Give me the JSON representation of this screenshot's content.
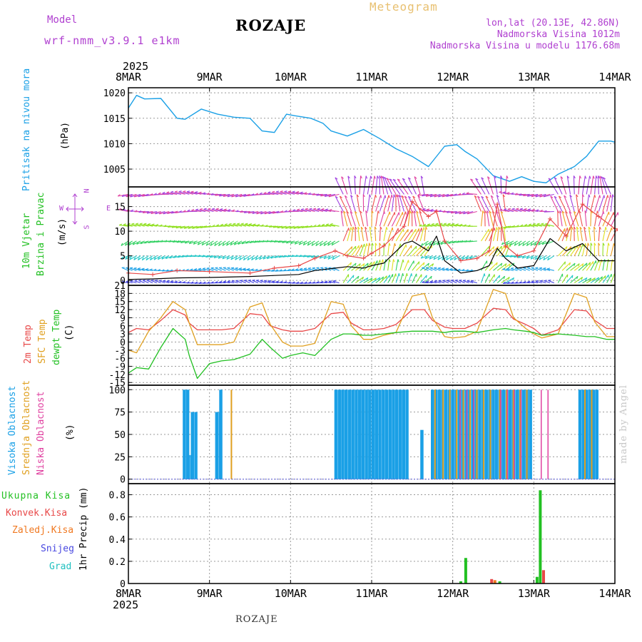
{
  "header": {
    "model_label": "Model",
    "model_name": "wrf-nmm_v3.9.1 e1km",
    "station": "ROZAJE",
    "meteogram_label": "Meteogram",
    "location": "lon,lat (20.13E, 42.86N)",
    "elevation": "Nadmorska Visina 1012m",
    "model_elevation": "Nadmorska Visina u modelu 1176.68m",
    "credit": "made by Angel"
  },
  "time_axis": {
    "year": "2025",
    "ticks": [
      "8MAR",
      "9MAR",
      "10MAR",
      "11MAR",
      "12MAR",
      "13MAR",
      "14MAR"
    ]
  },
  "colors": {
    "pressure": "#1aa0e6",
    "temp2m": "#e84848",
    "sfc": "#e0a020",
    "dewpt": "#22c022",
    "high_cloud": "#1aa0e6",
    "mid_cloud": "#e0a020",
    "low_cloud": "#e040a0",
    "total_precip": "#22c022",
    "conv_precip": "#e84848",
    "frz_precip": "#f07820",
    "snow": "#4848e0",
    "hail": "#20c0c0",
    "gust": "#e84848",
    "wind_mean": "#000000"
  },
  "panels": {
    "pressure": {
      "title": "Pritisak na nivou mora",
      "unit": "(hPa)",
      "ticks": [
        "1005",
        "1010",
        "1015",
        "1020"
      ]
    },
    "wind": {
      "title": "10m Vjetar",
      "subtitle": "Brzina i Pravac",
      "unit": "(m/s)",
      "ticks": [
        "0",
        "5",
        "10",
        "15"
      ],
      "compass": [
        "N",
        "W",
        "E",
        "S"
      ]
    },
    "temp": {
      "labels": [
        "2m Temp",
        "SFC Temp",
        "dewpt Temp"
      ],
      "unit": "(C)",
      "ticks": [
        "-15",
        "-12",
        "-9",
        "-6",
        "-3",
        "0",
        "3",
        "6",
        "9",
        "12",
        "15",
        "18",
        "21"
      ]
    },
    "cloud": {
      "labels": [
        "Visoka Oblacnost",
        "Srednja Oblacnost",
        "Niska Oblacnost"
      ],
      "unit": "(%)",
      "ticks": [
        "0",
        "25",
        "50",
        "75",
        "100"
      ]
    },
    "precip": {
      "labels": [
        "Ukupna Kisa",
        "Konvek.Kisa",
        "Zaledj.Kisa",
        "Snijeg",
        "Grad"
      ],
      "unit": "1hr Precip (mm)",
      "ticks": [
        "0",
        "0.2",
        "0.4",
        "0.6",
        "0.8"
      ]
    }
  },
  "chart_data": [
    {
      "type": "line",
      "title": "Pritisak na nivou mora",
      "ylabel": "(hPa)",
      "ylim": [
        1001.5,
        1021
      ],
      "x": [
        0,
        0.1,
        0.2,
        0.4,
        0.6,
        0.7,
        0.9,
        1.1,
        1.3,
        1.5,
        1.65,
        1.8,
        1.95,
        2.05,
        2.25,
        2.4,
        2.5,
        2.7,
        2.9,
        3.1,
        3.3,
        3.5,
        3.7,
        3.9,
        4.05,
        4.15,
        4.3,
        4.5,
        4.7,
        4.85,
        5.0,
        5.15,
        5.3,
        5.5,
        5.65,
        5.8,
        5.95,
        6.0
      ],
      "series": [
        {
          "name": "Pritisak na nivou mora",
          "values": [
            1017,
            1019.5,
            1018.8,
            1018.9,
            1015,
            1014.8,
            1016.8,
            1015.8,
            1015.2,
            1015,
            1012.5,
            1012.2,
            1015.8,
            1015.5,
            1015,
            1014,
            1012.5,
            1011.5,
            1012.8,
            1011,
            1009,
            1007.5,
            1005.5,
            1009.5,
            1009.8,
            1008.5,
            1007,
            1003.7,
            1002.6,
            1003.5,
            1002.6,
            1002.3,
            1004,
            1005.5,
            1007.5,
            1010.5,
            1010.5,
            1010.3
          ]
        }
      ],
      "grid": true
    },
    {
      "type": "line",
      "title": "10m Vjetar",
      "subtitle": "Brzina i Pravac",
      "ylabel": "(m/s)",
      "ylim": [
        -1,
        19
      ],
      "x": [
        0,
        0.3,
        0.6,
        1.0,
        1.5,
        1.8,
        2.1,
        2.3,
        2.55,
        2.7,
        2.9,
        3.0,
        3.15,
        3.4,
        3.5,
        3.7,
        3.8,
        3.9,
        4.1,
        4.3,
        4.45,
        4.55,
        4.65,
        4.8,
        5.0,
        5.2,
        5.4,
        5.6,
        5.8,
        6.0
      ],
      "series": [
        {
          "name": "",
          "values": [
            0.2,
            0.3,
            0.5,
            0.6,
            0.8,
            1.0,
            1.2,
            2.0,
            2.5,
            2.8,
            2.5,
            3.0,
            3.5,
            7.5,
            8.0,
            6.0,
            9.0,
            4.0,
            1.5,
            2.0,
            3.0,
            6.5,
            4.5,
            2.5,
            3.0,
            8.5,
            6.0,
            7.5,
            4.0,
            4.0
          ]
        },
        {
          "name": "",
          "values": [
            1.5,
            1.2,
            2.0,
            1.8,
            1.5,
            2.5,
            3.0,
            4.5,
            6.0,
            5.0,
            4.5,
            5.5,
            7.0,
            11.0,
            16.0,
            13.0,
            14.0,
            8.0,
            4.0,
            4.5,
            6.0,
            15.5,
            7.0,
            5.0,
            6.0,
            12.5,
            9.0,
            15.5,
            13.0,
            10.5
          ]
        }
      ],
      "grid": true
    },
    {
      "type": "line",
      "labels": [
        "2m Temp",
        "SFC Temp",
        "dewpt Temp"
      ],
      "ylabel": "(C)",
      "ylim": [
        -16,
        21
      ],
      "x": [
        0,
        0.1,
        0.25,
        0.4,
        0.55,
        0.7,
        0.75,
        0.85,
        1.0,
        1.15,
        1.3,
        1.5,
        1.65,
        1.75,
        1.9,
        2.0,
        2.15,
        2.3,
        2.5,
        2.65,
        2.75,
        2.9,
        3.0,
        3.15,
        3.3,
        3.5,
        3.65,
        3.75,
        3.9,
        4.0,
        4.15,
        4.3,
        4.5,
        4.65,
        4.75,
        4.9,
        5.0,
        5.1,
        5.3,
        5.5,
        5.65,
        5.75,
        5.9,
        6.0
      ],
      "series": [
        {
          "name": "2m Temp",
          "values": [
            3.5,
            5.0,
            4.5,
            8.0,
            12.0,
            10.0,
            7.0,
            4.5,
            4.5,
            4.5,
            5.0,
            10.5,
            10.0,
            6.0,
            4.5,
            4.0,
            4.0,
            5.0,
            10.5,
            11.0,
            7.0,
            4.5,
            4.5,
            5.0,
            6.5,
            12.0,
            12.0,
            8.0,
            5.5,
            5.0,
            5.0,
            7.0,
            12.5,
            12.0,
            8.5,
            6.5,
            5.0,
            2.5,
            4.5,
            12.0,
            11.5,
            8.0,
            5.0,
            5.0
          ]
        },
        {
          "name": "SFC Temp",
          "values": [
            -3.0,
            -4.0,
            4.0,
            9.0,
            15.0,
            12.0,
            7.0,
            -1.0,
            -1.0,
            -1.0,
            0.0,
            13.0,
            14.5,
            6.5,
            0.0,
            -1.5,
            -1.5,
            -0.5,
            15.0,
            14.0,
            6.0,
            1.0,
            1.0,
            2.5,
            3.5,
            17.0,
            18.0,
            9.0,
            2.0,
            1.5,
            2.0,
            4.0,
            19.5,
            18.0,
            9.0,
            5.0,
            3.0,
            1.5,
            3.0,
            18.0,
            16.5,
            7.5,
            2.0,
            2.0
          ]
        },
        {
          "name": "dewpt Temp",
          "values": [
            -11.5,
            -9.5,
            -10.0,
            -2.0,
            5.0,
            1.0,
            -5.0,
            -13.5,
            -8.0,
            -7.0,
            -6.5,
            -4.5,
            1.0,
            -2.0,
            -6.0,
            -5.0,
            -4.0,
            -5.0,
            1.0,
            3.0,
            3.0,
            2.5,
            2.5,
            3.0,
            3.5,
            4.0,
            4.0,
            4.0,
            3.5,
            4.0,
            4.0,
            3.5,
            4.5,
            5.0,
            4.5,
            4.0,
            3.5,
            2.5,
            3.0,
            2.5,
            2.0,
            2.0,
            1.0,
            1.0
          ]
        }
      ],
      "grid": true
    },
    {
      "type": "bar",
      "labels": [
        "Visoka Oblacnost",
        "Srednja Oblacnost",
        "Niska Oblacnost"
      ],
      "ylabel": "(%)",
      "ylim": [
        -5,
        105
      ],
      "groups": [
        {
          "name": "Visoka Oblacnost",
          "spans": [
            [
              0.67,
              0.72,
              100
            ],
            [
              0.72,
              0.77,
              27
            ],
            [
              0.77,
              0.83,
              75
            ],
            [
              1.07,
              1.12,
              75
            ],
            [
              1.12,
              1.16,
              100
            ],
            [
              2.54,
              3.45,
              100
            ],
            [
              3.6,
              3.63,
              55
            ],
            [
              3.73,
              4.95,
              100
            ],
            [
              5.55,
              5.8,
              100
            ]
          ]
        },
        {
          "name": "Srednja Oblacnost",
          "spans": [
            [
              1.24,
              1.3,
              100
            ],
            [
              3.75,
              3.78,
              100
            ],
            [
              3.85,
              4.45,
              100
            ],
            [
              4.55,
              4.95,
              100
            ],
            [
              5.6,
              5.75,
              100
            ]
          ]
        },
        {
          "name": "Niska Oblacnost",
          "spans": [
            [
              4.05,
              4.25,
              100
            ],
            [
              4.55,
              4.8,
              100
            ],
            [
              5.05,
              5.15,
              100
            ]
          ]
        }
      ],
      "grid": true
    },
    {
      "type": "bar",
      "labels": [
        "Ukupna Kisa",
        "Konvek.Kisa",
        "Zaledj.Kisa",
        "Snijeg",
        "Grad"
      ],
      "ylabel": "1hr Precip (mm)",
      "ylim": [
        0,
        0.9
      ],
      "bars": [
        {
          "name": "Ukupna Kisa",
          "x": 4.1,
          "value": 0.02
        },
        {
          "name": "Ukupna Kisa",
          "x": 4.16,
          "value": 0.23
        },
        {
          "name": "Konvek.Kisa",
          "x": 4.48,
          "value": 0.04
        },
        {
          "name": "Zaledj.Kisa",
          "x": 4.52,
          "value": 0.03
        },
        {
          "name": "Ukupna Kisa",
          "x": 4.58,
          "value": 0.02
        },
        {
          "name": "Ukupna Kisa",
          "x": 5.04,
          "value": 0.06
        },
        {
          "name": "Ukupna Kisa",
          "x": 5.08,
          "value": 0.84
        },
        {
          "name": "Konvek.Kisa",
          "x": 5.12,
          "value": 0.12
        }
      ],
      "grid": true
    }
  ]
}
